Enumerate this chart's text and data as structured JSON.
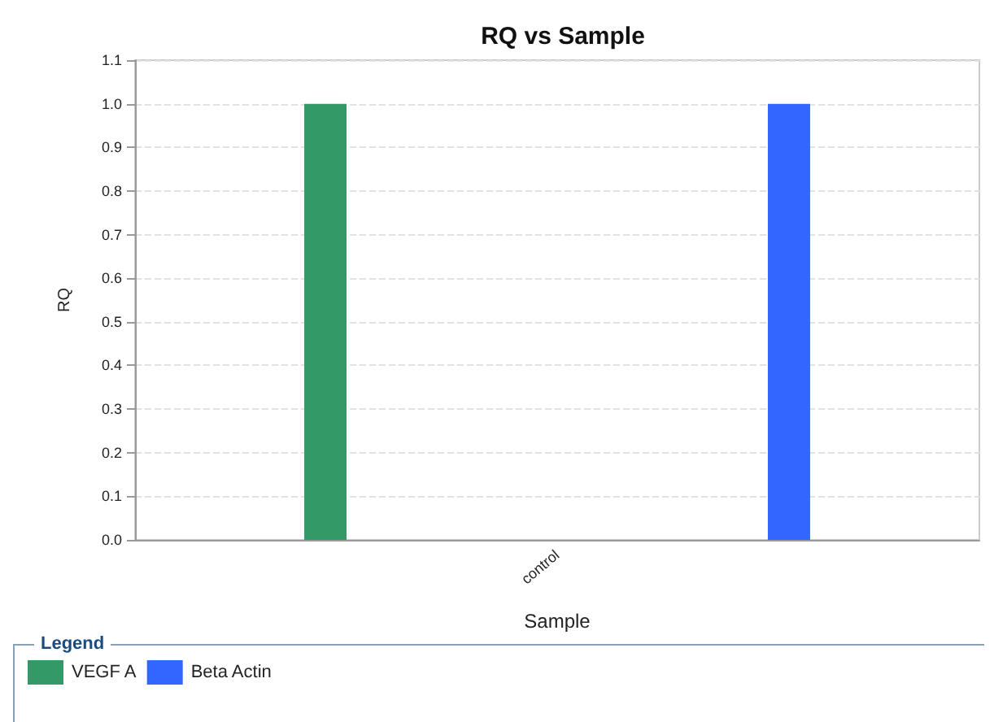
{
  "chart_data": {
    "type": "bar",
    "title": "RQ vs Sample",
    "xlabel": "Sample",
    "ylabel": "RQ",
    "legend_title": "Legend",
    "categories": [
      "control"
    ],
    "series": [
      {
        "name": "VEGF A",
        "color": "#339966",
        "values": [
          1.0
        ]
      },
      {
        "name": "Beta Actin",
        "color": "#3366ff",
        "values": [
          1.0
        ]
      }
    ],
    "ylim": [
      0,
      1.1
    ],
    "yticks": [
      {
        "value": 0,
        "label": "0.0"
      },
      0.1,
      0.2,
      0.3,
      0.4,
      0.5,
      0.6,
      0.7,
      0.8,
      0.9,
      {
        "value": 1,
        "label": "1.0"
      },
      1.1
    ],
    "grid": "y",
    "legend": "bottom left"
  }
}
